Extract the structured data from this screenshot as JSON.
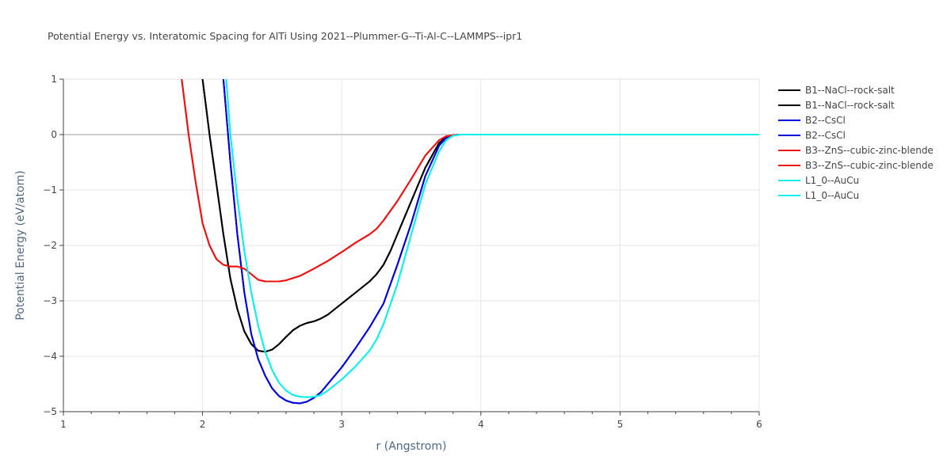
{
  "chart_data": {
    "type": "line",
    "title": "Potential Energy vs. Interatomic Spacing for AlTi Using 2021--Plummer-G--Ti-Al-C--LAMMPS--ipr1",
    "xlabel": "r (Angstrom)",
    "ylabel": "Potential Energy (eV/atom)",
    "xlim": [
      1,
      6
    ],
    "ylim": [
      -5,
      1
    ],
    "xticks": [
      1,
      2,
      3,
      4,
      5,
      6
    ],
    "yticks": [
      1,
      0,
      -1,
      -2,
      -3,
      -4,
      -5
    ],
    "ytick_labels": [
      "1",
      "0",
      "−1",
      "−2",
      "−3",
      "−4",
      "−5"
    ],
    "grid": true,
    "legend_position": "top-right",
    "series": [
      {
        "name": "B1--NaCl--rock-salt",
        "color": "#000000",
        "x": [
          2.0,
          2.05,
          2.1,
          2.15,
          2.2,
          2.25,
          2.3,
          2.35,
          2.4,
          2.45,
          2.5,
          2.55,
          2.6,
          2.65,
          2.7,
          2.75,
          2.8,
          2.85,
          2.9,
          3.0,
          3.1,
          3.2,
          3.25,
          3.3,
          3.35,
          3.4,
          3.5,
          3.6,
          3.7,
          3.75,
          3.8,
          3.85,
          3.9,
          4.0,
          5.0,
          6.0
        ],
        "y": [
          1.0,
          0.0,
          -0.9,
          -1.8,
          -2.6,
          -3.15,
          -3.55,
          -3.78,
          -3.9,
          -3.92,
          -3.88,
          -3.78,
          -3.65,
          -3.53,
          -3.45,
          -3.4,
          -3.37,
          -3.32,
          -3.25,
          -3.05,
          -2.85,
          -2.65,
          -2.52,
          -2.35,
          -2.1,
          -1.8,
          -1.2,
          -0.6,
          -0.15,
          -0.05,
          -0.01,
          0.0,
          0.0,
          0.0,
          0.0,
          0.0
        ]
      },
      {
        "name": "B1--NaCl--rock-salt",
        "color": "#000000",
        "x": [
          2.0,
          2.05,
          2.1,
          2.15,
          2.2,
          2.25,
          2.3,
          2.35,
          2.4,
          2.45,
          2.5,
          2.55,
          2.6,
          2.65,
          2.7,
          2.75,
          2.8,
          2.85,
          2.9,
          3.0,
          3.1,
          3.2,
          3.25,
          3.3,
          3.35,
          3.4,
          3.5,
          3.6,
          3.7,
          3.75,
          3.8,
          3.85,
          3.9,
          4.0,
          5.0,
          6.0
        ],
        "y": [
          1.0,
          0.0,
          -0.9,
          -1.8,
          -2.6,
          -3.15,
          -3.55,
          -3.78,
          -3.9,
          -3.92,
          -3.88,
          -3.78,
          -3.65,
          -3.53,
          -3.45,
          -3.4,
          -3.37,
          -3.32,
          -3.25,
          -3.05,
          -2.85,
          -2.65,
          -2.52,
          -2.35,
          -2.1,
          -1.8,
          -1.2,
          -0.6,
          -0.15,
          -0.05,
          -0.01,
          0.0,
          0.0,
          0.0,
          0.0,
          0.0
        ]
      },
      {
        "name": "B2--CsCl",
        "color": "#0000dd",
        "x": [
          2.15,
          2.2,
          2.25,
          2.3,
          2.35,
          2.4,
          2.45,
          2.5,
          2.55,
          2.6,
          2.65,
          2.7,
          2.75,
          2.8,
          2.85,
          2.9,
          3.0,
          3.1,
          3.2,
          3.3,
          3.4,
          3.5,
          3.6,
          3.7,
          3.75,
          3.8,
          3.85,
          3.9,
          4.0,
          5.0,
          6.0
        ],
        "y": [
          1.0,
          -0.5,
          -1.8,
          -2.85,
          -3.6,
          -4.05,
          -4.35,
          -4.58,
          -4.72,
          -4.8,
          -4.84,
          -4.85,
          -4.82,
          -4.75,
          -4.65,
          -4.5,
          -4.2,
          -3.85,
          -3.48,
          -3.05,
          -2.35,
          -1.6,
          -0.75,
          -0.2,
          -0.06,
          -0.01,
          0.0,
          0.0,
          0.0,
          0.0,
          0.0
        ]
      },
      {
        "name": "B2--CsCl",
        "color": "#0000dd",
        "x": [
          2.15,
          2.2,
          2.25,
          2.3,
          2.35,
          2.4,
          2.45,
          2.5,
          2.55,
          2.6,
          2.65,
          2.7,
          2.75,
          2.8,
          2.85,
          2.9,
          3.0,
          3.1,
          3.2,
          3.3,
          3.4,
          3.5,
          3.6,
          3.7,
          3.75,
          3.8,
          3.85,
          3.9,
          4.0,
          5.0,
          6.0
        ],
        "y": [
          1.0,
          -0.5,
          -1.8,
          -2.85,
          -3.6,
          -4.05,
          -4.35,
          -4.58,
          -4.72,
          -4.8,
          -4.84,
          -4.85,
          -4.82,
          -4.75,
          -4.65,
          -4.5,
          -4.2,
          -3.85,
          -3.48,
          -3.05,
          -2.35,
          -1.6,
          -0.75,
          -0.2,
          -0.06,
          -0.01,
          0.0,
          0.0,
          0.0,
          0.0,
          0.0
        ]
      },
      {
        "name": "B3--ZnS--cubic-zinc-blende",
        "color": "#ee1111",
        "x": [
          1.85,
          1.9,
          1.95,
          2.0,
          2.05,
          2.1,
          2.15,
          2.2,
          2.25,
          2.3,
          2.35,
          2.4,
          2.45,
          2.5,
          2.55,
          2.6,
          2.7,
          2.8,
          2.9,
          3.0,
          3.1,
          3.2,
          3.25,
          3.3,
          3.4,
          3.5,
          3.6,
          3.7,
          3.75,
          3.8,
          3.85,
          3.9,
          4.0,
          5.0,
          6.0
        ],
        "y": [
          1.0,
          0.0,
          -0.85,
          -1.6,
          -2.0,
          -2.25,
          -2.35,
          -2.38,
          -2.38,
          -2.42,
          -2.52,
          -2.62,
          -2.65,
          -2.65,
          -2.65,
          -2.63,
          -2.55,
          -2.42,
          -2.28,
          -2.12,
          -1.95,
          -1.8,
          -1.7,
          -1.55,
          -1.2,
          -0.8,
          -0.38,
          -0.1,
          -0.03,
          -0.01,
          0.0,
          0.0,
          0.0,
          0.0,
          0.0
        ]
      },
      {
        "name": "B3--ZnS--cubic-zinc-blende",
        "color": "#ee1111",
        "x": [
          1.85,
          1.9,
          1.95,
          2.0,
          2.05,
          2.1,
          2.15,
          2.2,
          2.25,
          2.3,
          2.35,
          2.4,
          2.45,
          2.5,
          2.55,
          2.6,
          2.7,
          2.8,
          2.9,
          3.0,
          3.1,
          3.2,
          3.25,
          3.3,
          3.4,
          3.5,
          3.6,
          3.7,
          3.75,
          3.8,
          3.85,
          3.9,
          4.0,
          5.0,
          6.0
        ],
        "y": [
          1.0,
          0.0,
          -0.85,
          -1.6,
          -2.0,
          -2.25,
          -2.35,
          -2.38,
          -2.38,
          -2.42,
          -2.52,
          -2.62,
          -2.65,
          -2.65,
          -2.65,
          -2.63,
          -2.55,
          -2.42,
          -2.28,
          -2.12,
          -1.95,
          -1.8,
          -1.7,
          -1.55,
          -1.2,
          -0.8,
          -0.38,
          -0.1,
          -0.03,
          -0.01,
          0.0,
          0.0,
          0.0,
          0.0,
          0.0
        ]
      },
      {
        "name": "L1_0--AuCu",
        "color": "#11eeee",
        "x": [
          2.17,
          2.2,
          2.25,
          2.3,
          2.35,
          2.4,
          2.45,
          2.5,
          2.55,
          2.6,
          2.65,
          2.7,
          2.75,
          2.8,
          2.85,
          2.9,
          3.0,
          3.1,
          3.2,
          3.25,
          3.3,
          3.4,
          3.5,
          3.6,
          3.7,
          3.75,
          3.8,
          3.85,
          3.9,
          4.0,
          5.0,
          6.0
        ],
        "y": [
          1.0,
          0.0,
          -1.15,
          -2.1,
          -2.85,
          -3.45,
          -3.92,
          -4.25,
          -4.48,
          -4.62,
          -4.7,
          -4.73,
          -4.74,
          -4.73,
          -4.7,
          -4.62,
          -4.42,
          -4.18,
          -3.9,
          -3.7,
          -3.42,
          -2.7,
          -1.8,
          -0.9,
          -0.3,
          -0.1,
          -0.02,
          0.0,
          0.0,
          0.0,
          0.0,
          0.0
        ]
      },
      {
        "name": "L1_0--AuCu",
        "color": "#11eeee",
        "x": [
          2.17,
          2.2,
          2.25,
          2.3,
          2.35,
          2.4,
          2.45,
          2.5,
          2.55,
          2.6,
          2.65,
          2.7,
          2.75,
          2.8,
          2.85,
          2.9,
          3.0,
          3.1,
          3.2,
          3.25,
          3.3,
          3.4,
          3.5,
          3.6,
          3.7,
          3.75,
          3.8,
          3.85,
          3.9,
          4.0,
          5.0,
          6.0
        ],
        "y": [
          1.0,
          0.0,
          -1.15,
          -2.1,
          -2.85,
          -3.45,
          -3.92,
          -4.25,
          -4.48,
          -4.62,
          -4.7,
          -4.73,
          -4.74,
          -4.73,
          -4.7,
          -4.62,
          -4.42,
          -4.18,
          -3.9,
          -3.7,
          -3.42,
          -2.7,
          -1.8,
          -0.9,
          -0.3,
          -0.1,
          -0.02,
          0.0,
          0.0,
          0.0,
          0.0,
          0.0
        ]
      }
    ]
  }
}
